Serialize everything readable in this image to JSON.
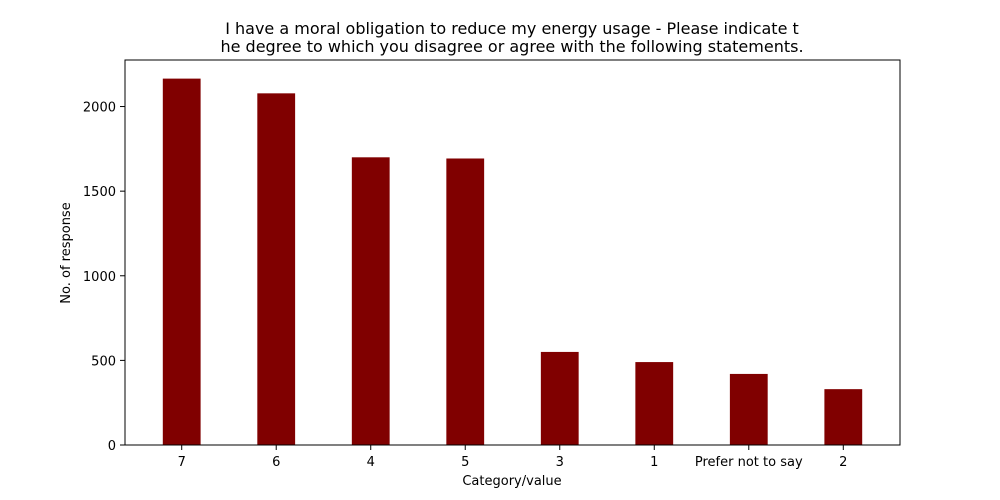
{
  "chart_data": {
    "type": "bar",
    "title_lines": [
      "I have a moral obligation to reduce my energy usage - Please indicate t",
      "he degree to which you disagree or agree with the following statements."
    ],
    "xlabel": "Category/value",
    "ylabel": "No. of response",
    "categories": [
      "7",
      "6",
      "4",
      "5",
      "3",
      "1",
      "Prefer not to say",
      "2"
    ],
    "values": [
      2165,
      2078,
      1700,
      1693,
      550,
      490,
      420,
      330
    ],
    "ylim": [
      0,
      2275
    ],
    "yticks": [
      0,
      500,
      1000,
      1500,
      2000
    ],
    "bar_color": "#800000",
    "grid": false
  }
}
